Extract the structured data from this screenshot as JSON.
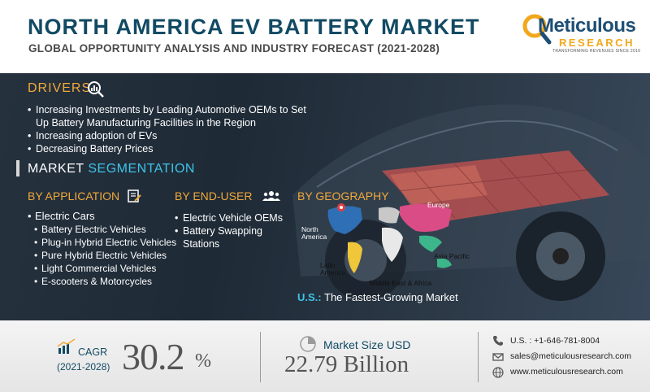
{
  "header": {
    "title": "NORTH AMERICA EV BATTERY MARKET",
    "subtitle": "GLOBAL OPPORTUNITY ANALYSIS AND INDUSTRY FORECAST (2021-2028)"
  },
  "logo": {
    "word": "Meticulous",
    "research": "RESEARCH",
    "tagline": "TRANSFORMING REVENUES SINCE 2010"
  },
  "drivers": {
    "title": "DRIVERS",
    "items": [
      "Increasing Investments by Leading Automotive OEMs to Set Up Battery Manufacturing Facilities in the Region",
      "Increasing adoption of EVs",
      "Decreasing Battery Prices"
    ]
  },
  "segmentation": {
    "title_part1": "MARKET",
    "title_part2": "SEGMENTATION",
    "application": {
      "heading": "BY APPLICATION",
      "main": "Electric Cars",
      "items": [
        "Battery Electric Vehicles",
        "Plug-in Hybrid Electric Vehicles",
        "Pure Hybrid Electric Vehicles",
        "Light Commercial Vehicles",
        "E-scooters & Motorcycles"
      ]
    },
    "end_user": {
      "heading": "BY END-USER",
      "items": [
        "Electric Vehicle OEMs",
        "Battery Swapping Stations"
      ]
    },
    "geography": {
      "heading": "BY GEOGRAPHY",
      "regions": {
        "north_america": "North America",
        "europe": "Europe",
        "asia_pacific": "Asia Pacific",
        "latin_america": "Latin America",
        "mea": "Middle East & Africa"
      },
      "fastest_prefix": "U.S.:",
      "fastest_text": "The Fastest-Growing Market"
    }
  },
  "stats": {
    "cagr_label": "CAGR",
    "cagr_years": "(2021-2028)",
    "cagr_value": "30.2",
    "cagr_unit": "%",
    "market_size_label": "Market Size USD",
    "market_size_value": "22.79 Billion"
  },
  "contact": {
    "phone": "U.S. : +1-646-781-8004",
    "email": "sales@meticulousresearch.com",
    "website": "www.meticulousresearch.com"
  },
  "colors": {
    "title": "#124a63",
    "accent_orange": "#f0a93a",
    "accent_blue": "#3fc3e8",
    "panel_bg": "#26313e"
  }
}
